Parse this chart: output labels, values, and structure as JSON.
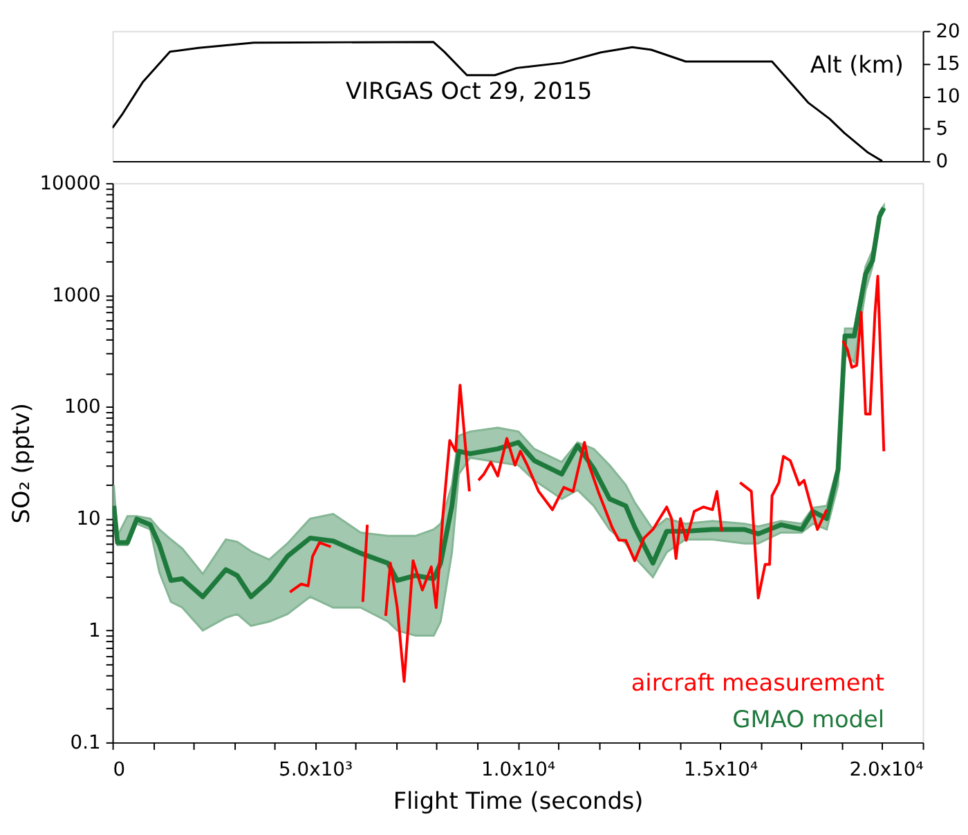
{
  "chart_data": [
    {
      "type": "line",
      "title": "VIRGAS Oct 29, 2015",
      "y2label": "Alt (km)",
      "series": [
        {
          "color": "#000000",
          "axis": "y2",
          "x": [
            0,
            254,
            745,
            1420,
            2130,
            3490,
            7920,
            8190,
            8750,
            9440,
            9980,
            11100,
            12060,
            12830,
            13300,
            14150,
            16280,
            17170,
            17700,
            18070,
            18650,
            19000
          ],
          "values": [
            5.1,
            7.3,
            12.1,
            16.8,
            17.4,
            18.2,
            18.3,
            16.8,
            13.2,
            13.2,
            14.3,
            15.1,
            16.7,
            17.5,
            17.1,
            15.3,
            15.3,
            9.0,
            6.5,
            4.3,
            1.3,
            0
          ]
        }
      ],
      "xlim": [
        0,
        20000
      ],
      "y2lim": [
        0,
        20
      ],
      "y2ticks": [
        0,
        5,
        10,
        15,
        20
      ],
      "tick_labels": "y",
      "marker": "none",
      "line_style": "solid"
    },
    {
      "type": "line",
      "xlabel": "Flight Time (seconds)",
      "ylabel": "SO₂ (pptv)",
      "log": "y",
      "legend": "bottom right",
      "marker": "none",
      "line_style": "solid",
      "series": [
        {
          "name": "aircraft measurement",
          "color": "#ff0000",
          "x": [
            4380,
            4660,
            4830,
            4940,
            5110,
            5390,
            5800,
            6180,
            6290,
            6500,
            6745,
            6860,
            7030,
            7200,
            7420,
            7650,
            7870,
            7990,
            8160,
            8325,
            8470,
            8580,
            8810,
            8920,
            9035,
            9170,
            9340,
            9510,
            9735,
            9935,
            10070,
            10240,
            10520,
            10860,
            11140,
            11370,
            11650,
            11765,
            11990,
            12330,
            12500,
            12670,
            12890,
            13120,
            13340,
            13680,
            13800,
            13910,
            14020,
            14160,
            14360,
            14585,
            14810,
            14920,
            15040,
            15260,
            15490,
            15770,
            15940,
            16110,
            16220,
            16280,
            16450,
            16560,
            16730,
            16950,
            17070,
            17400,
            17630,
            17830,
            18030,
            18140,
            18250,
            18370,
            18480,
            18590,
            18700,
            18820,
            18890,
            19040
          ],
          "values": [
            2.2,
            2.6,
            2.5,
            4.6,
            6.1,
            5.6,
            null,
            1.8,
            8.8,
            null,
            1.35,
            4.0,
            1.6,
            0.35,
            4.2,
            2.3,
            3.7,
            1.6,
            11,
            50,
            40,
            156,
            17.5,
            null,
            22,
            25,
            32,
            24,
            52,
            30,
            40,
            30,
            17.5,
            12,
            19,
            17.5,
            48,
            30,
            17.5,
            8.4,
            6.4,
            6.4,
            4.2,
            6.7,
            8.0,
            12.7,
            10,
            4.4,
            10,
            6.4,
            11.6,
            12.7,
            12,
            17.5,
            7.7,
            null,
            21,
            17.5,
            1.95,
            3.9,
            3.9,
            16,
            21,
            36,
            33,
            20,
            22,
            8.0,
            12,
            null,
            390,
            325,
            225,
            234,
            700,
            86,
            86,
            680,
            1470,
            40
          ]
        },
        {
          "name": "GMAO model",
          "color": "#1e7a3c",
          "x": [
            34,
            125,
            372,
            600,
            935,
            1160,
            1445,
            1725,
            2230,
            2800,
            3080,
            3420,
            3870,
            4320,
            4880,
            5450,
            6125,
            6800,
            7030,
            7480,
            7930,
            8100,
            8380,
            8550,
            8830,
            9510,
            10020,
            10410,
            11090,
            11480,
            11880,
            12270,
            12670,
            12890,
            13340,
            13680,
            14140,
            14810,
            15600,
            15940,
            16500,
            17010,
            17290,
            17630,
            17910,
            18080,
            18310,
            18590,
            18760,
            18930,
            19040
          ],
          "values": [
            13,
            6.1,
            6.1,
            9.9,
            8.8,
            5.8,
            2.8,
            2.9,
            2.0,
            3.5,
            3.1,
            2.0,
            2.8,
            4.6,
            6.7,
            6.3,
            4.9,
            4.0,
            2.8,
            3.1,
            2.9,
            4.0,
            13,
            40,
            38,
            42,
            48,
            33,
            25,
            45,
            28,
            15,
            13,
            8.4,
            4.0,
            7.7,
            7.7,
            8.0,
            8.0,
            7.3,
            8.8,
            8.0,
            11.6,
            10,
            27.5,
            430,
            430,
            1540,
            2020,
            5000,
            6000
          ],
          "lower": [
            11,
            5.8,
            5.8,
            9,
            8,
            3.3,
            1.8,
            1.6,
            1.0,
            1.3,
            1.4,
            1.1,
            1.2,
            1.4,
            2.0,
            1.6,
            1.6,
            1.2,
            1.0,
            0.9,
            0.9,
            1.2,
            5,
            25,
            35,
            32,
            30,
            22,
            15,
            18,
            13,
            8,
            6,
            4.5,
            3.0,
            5,
            6.5,
            6.5,
            6,
            6,
            7.5,
            7.5,
            9,
            8,
            20,
            300,
            250,
            1100,
            1800,
            4800,
            5800
          ],
          "upper": [
            20,
            7,
            10.5,
            10.5,
            10,
            8,
            6.5,
            5.4,
            3.2,
            6.5,
            6.2,
            5.1,
            4.3,
            6.0,
            10,
            11,
            7.5,
            7.0,
            7.0,
            7.0,
            8,
            9,
            20,
            55,
            60,
            65,
            60,
            42,
            32,
            48,
            42,
            30,
            20,
            14,
            8,
            10,
            9,
            9.5,
            9,
            8.5,
            9.5,
            9,
            12.5,
            13,
            30,
            500,
            500,
            1800,
            2500,
            5500,
            6300
          ]
        }
      ],
      "xlim": [
        0,
        20000
      ],
      "xticks": [
        0,
        {
          "value": 1000,
          "label": null
        },
        {
          "value": 2000,
          "label": null
        },
        {
          "value": 3000,
          "label": null
        },
        {
          "value": 4000,
          "label": null
        },
        {
          "value": 5000,
          "label": "5.0x10³"
        },
        {
          "value": 6000,
          "label": null
        },
        {
          "value": 7000,
          "label": null
        },
        {
          "value": 8000,
          "label": null
        },
        {
          "value": 9000,
          "label": null
        },
        {
          "value": 10000,
          "label": "1.0x10⁴"
        },
        {
          "value": 11000,
          "label": null
        },
        {
          "value": 12000,
          "label": null
        },
        {
          "value": 13000,
          "label": null
        },
        {
          "value": 14000,
          "label": null
        },
        {
          "value": 15000,
          "label": "1.5x10⁴"
        },
        {
          "value": 16000,
          "label": null
        },
        {
          "value": 17000,
          "label": null
        },
        {
          "value": 18000,
          "label": null
        },
        {
          "value": 19000,
          "label": null
        },
        {
          "value": 20000,
          "label": "2.0x10⁴"
        }
      ],
      "ylim": [
        0.1,
        10000
      ],
      "yticks": [
        0.1,
        {
          "value": 0.2,
          "label": null
        },
        {
          "value": 0.3,
          "label": null
        },
        {
          "value": 0.4,
          "label": null
        },
        {
          "value": 0.5,
          "label": null
        },
        {
          "value": 0.6,
          "label": null
        },
        {
          "value": 0.7,
          "label": null
        },
        {
          "value": 0.8,
          "label": null
        },
        {
          "value": 0.9,
          "label": null
        },
        1,
        {
          "value": 2,
          "label": null
        },
        {
          "value": 3,
          "label": null
        },
        {
          "value": 4,
          "label": null
        },
        {
          "value": 5,
          "label": null
        },
        {
          "value": 6,
          "label": null
        },
        {
          "value": 7,
          "label": null
        },
        {
          "value": 8,
          "label": null
        },
        {
          "value": 9,
          "label": null
        },
        10,
        {
          "value": 20,
          "label": null
        },
        {
          "value": 30,
          "label": null
        },
        {
          "value": 40,
          "label": null
        },
        {
          "value": 50,
          "label": null
        },
        {
          "value": 60,
          "label": null
        },
        {
          "value": 70,
          "label": null
        },
        {
          "value": 80,
          "label": null
        },
        {
          "value": 90,
          "label": null
        },
        100,
        {
          "value": 200,
          "label": null
        },
        {
          "value": 300,
          "label": null
        },
        {
          "value": 400,
          "label": null
        },
        {
          "value": 500,
          "label": null
        },
        {
          "value": 600,
          "label": null
        },
        {
          "value": 700,
          "label": null
        },
        {
          "value": 800,
          "label": null
        },
        {
          "value": 900,
          "label": null
        },
        1000,
        {
          "value": 2000,
          "label": null
        },
        {
          "value": 3000,
          "label": null
        },
        {
          "value": 4000,
          "label": null
        },
        {
          "value": 5000,
          "label": null
        },
        {
          "value": 6000,
          "label": null
        },
        {
          "value": 7000,
          "label": null
        },
        {
          "value": 8000,
          "label": null
        },
        {
          "value": 9000,
          "label": null
        },
        10000
      ]
    }
  ]
}
